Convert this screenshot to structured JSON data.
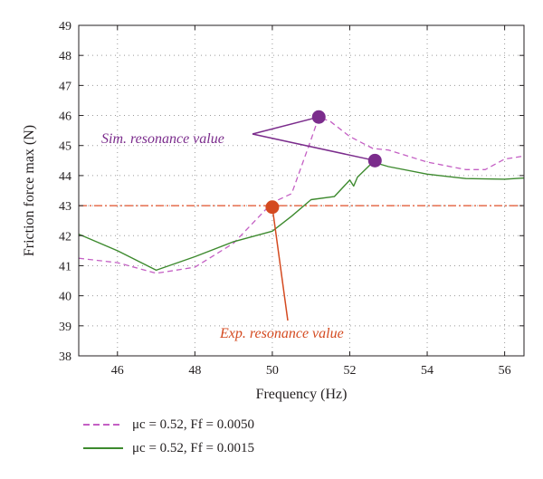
{
  "chart_data": {
    "type": "line",
    "xlabel": "Frequency (Hz)",
    "ylabel": "Friction force max (N)",
    "xlim": [
      45,
      56.5
    ],
    "ylim": [
      38,
      49
    ],
    "xticks": [
      46,
      48,
      50,
      52,
      54,
      56
    ],
    "yticks": [
      38,
      39,
      40,
      41,
      42,
      43,
      44,
      45,
      46,
      47,
      48,
      49
    ],
    "grid": true,
    "legend_position": "bottom",
    "series": [
      {
        "name": "μc = 0.52, Ff = 0.0050",
        "style": "dashed",
        "color": "#c45fc4",
        "x": [
          45,
          46,
          47,
          48,
          49,
          50,
          50.5,
          51,
          51.2,
          51.5,
          52,
          52.6,
          53,
          54,
          55,
          55.5,
          56,
          56.5
        ],
        "y": [
          41.25,
          41.1,
          40.75,
          40.95,
          41.75,
          43.1,
          43.4,
          45.2,
          45.95,
          45.8,
          45.3,
          44.9,
          44.85,
          44.45,
          44.2,
          44.2,
          44.55,
          44.65
        ]
      },
      {
        "name": "μc = 0.52, Ff = 0.0015",
        "style": "solid",
        "color": "#3d8a2e",
        "x": [
          45,
          46,
          47,
          48,
          49,
          50,
          50.5,
          51,
          51.6,
          52,
          52.1,
          52.2,
          52.6,
          53,
          54,
          55,
          56,
          56.5
        ],
        "y": [
          42.05,
          41.5,
          40.85,
          41.3,
          41.8,
          42.15,
          42.65,
          43.2,
          43.3,
          43.85,
          43.65,
          43.95,
          44.45,
          44.3,
          44.05,
          43.9,
          43.88,
          43.92
        ]
      }
    ],
    "reference_line": {
      "y": 43,
      "style": "dashdot",
      "color": "#e0502a"
    },
    "markers": [
      {
        "x": 50.0,
        "y": 42.95,
        "color": "#d44a20"
      },
      {
        "x": 51.2,
        "y": 45.95,
        "color": "#7b2c8c"
      },
      {
        "x": 52.65,
        "y": 44.5,
        "color": "#7b2c8c"
      }
    ],
    "annotations": [
      {
        "text": "Sim. resonance value",
        "color": "#7b2c8c"
      },
      {
        "text": "Exp. resonance value",
        "color": "#d44a20"
      }
    ]
  },
  "legend": {
    "items": [
      {
        "label": "μc = 0.52, Ff = 0.0050"
      },
      {
        "label": "μc = 0.52, Ff = 0.0015"
      }
    ]
  }
}
